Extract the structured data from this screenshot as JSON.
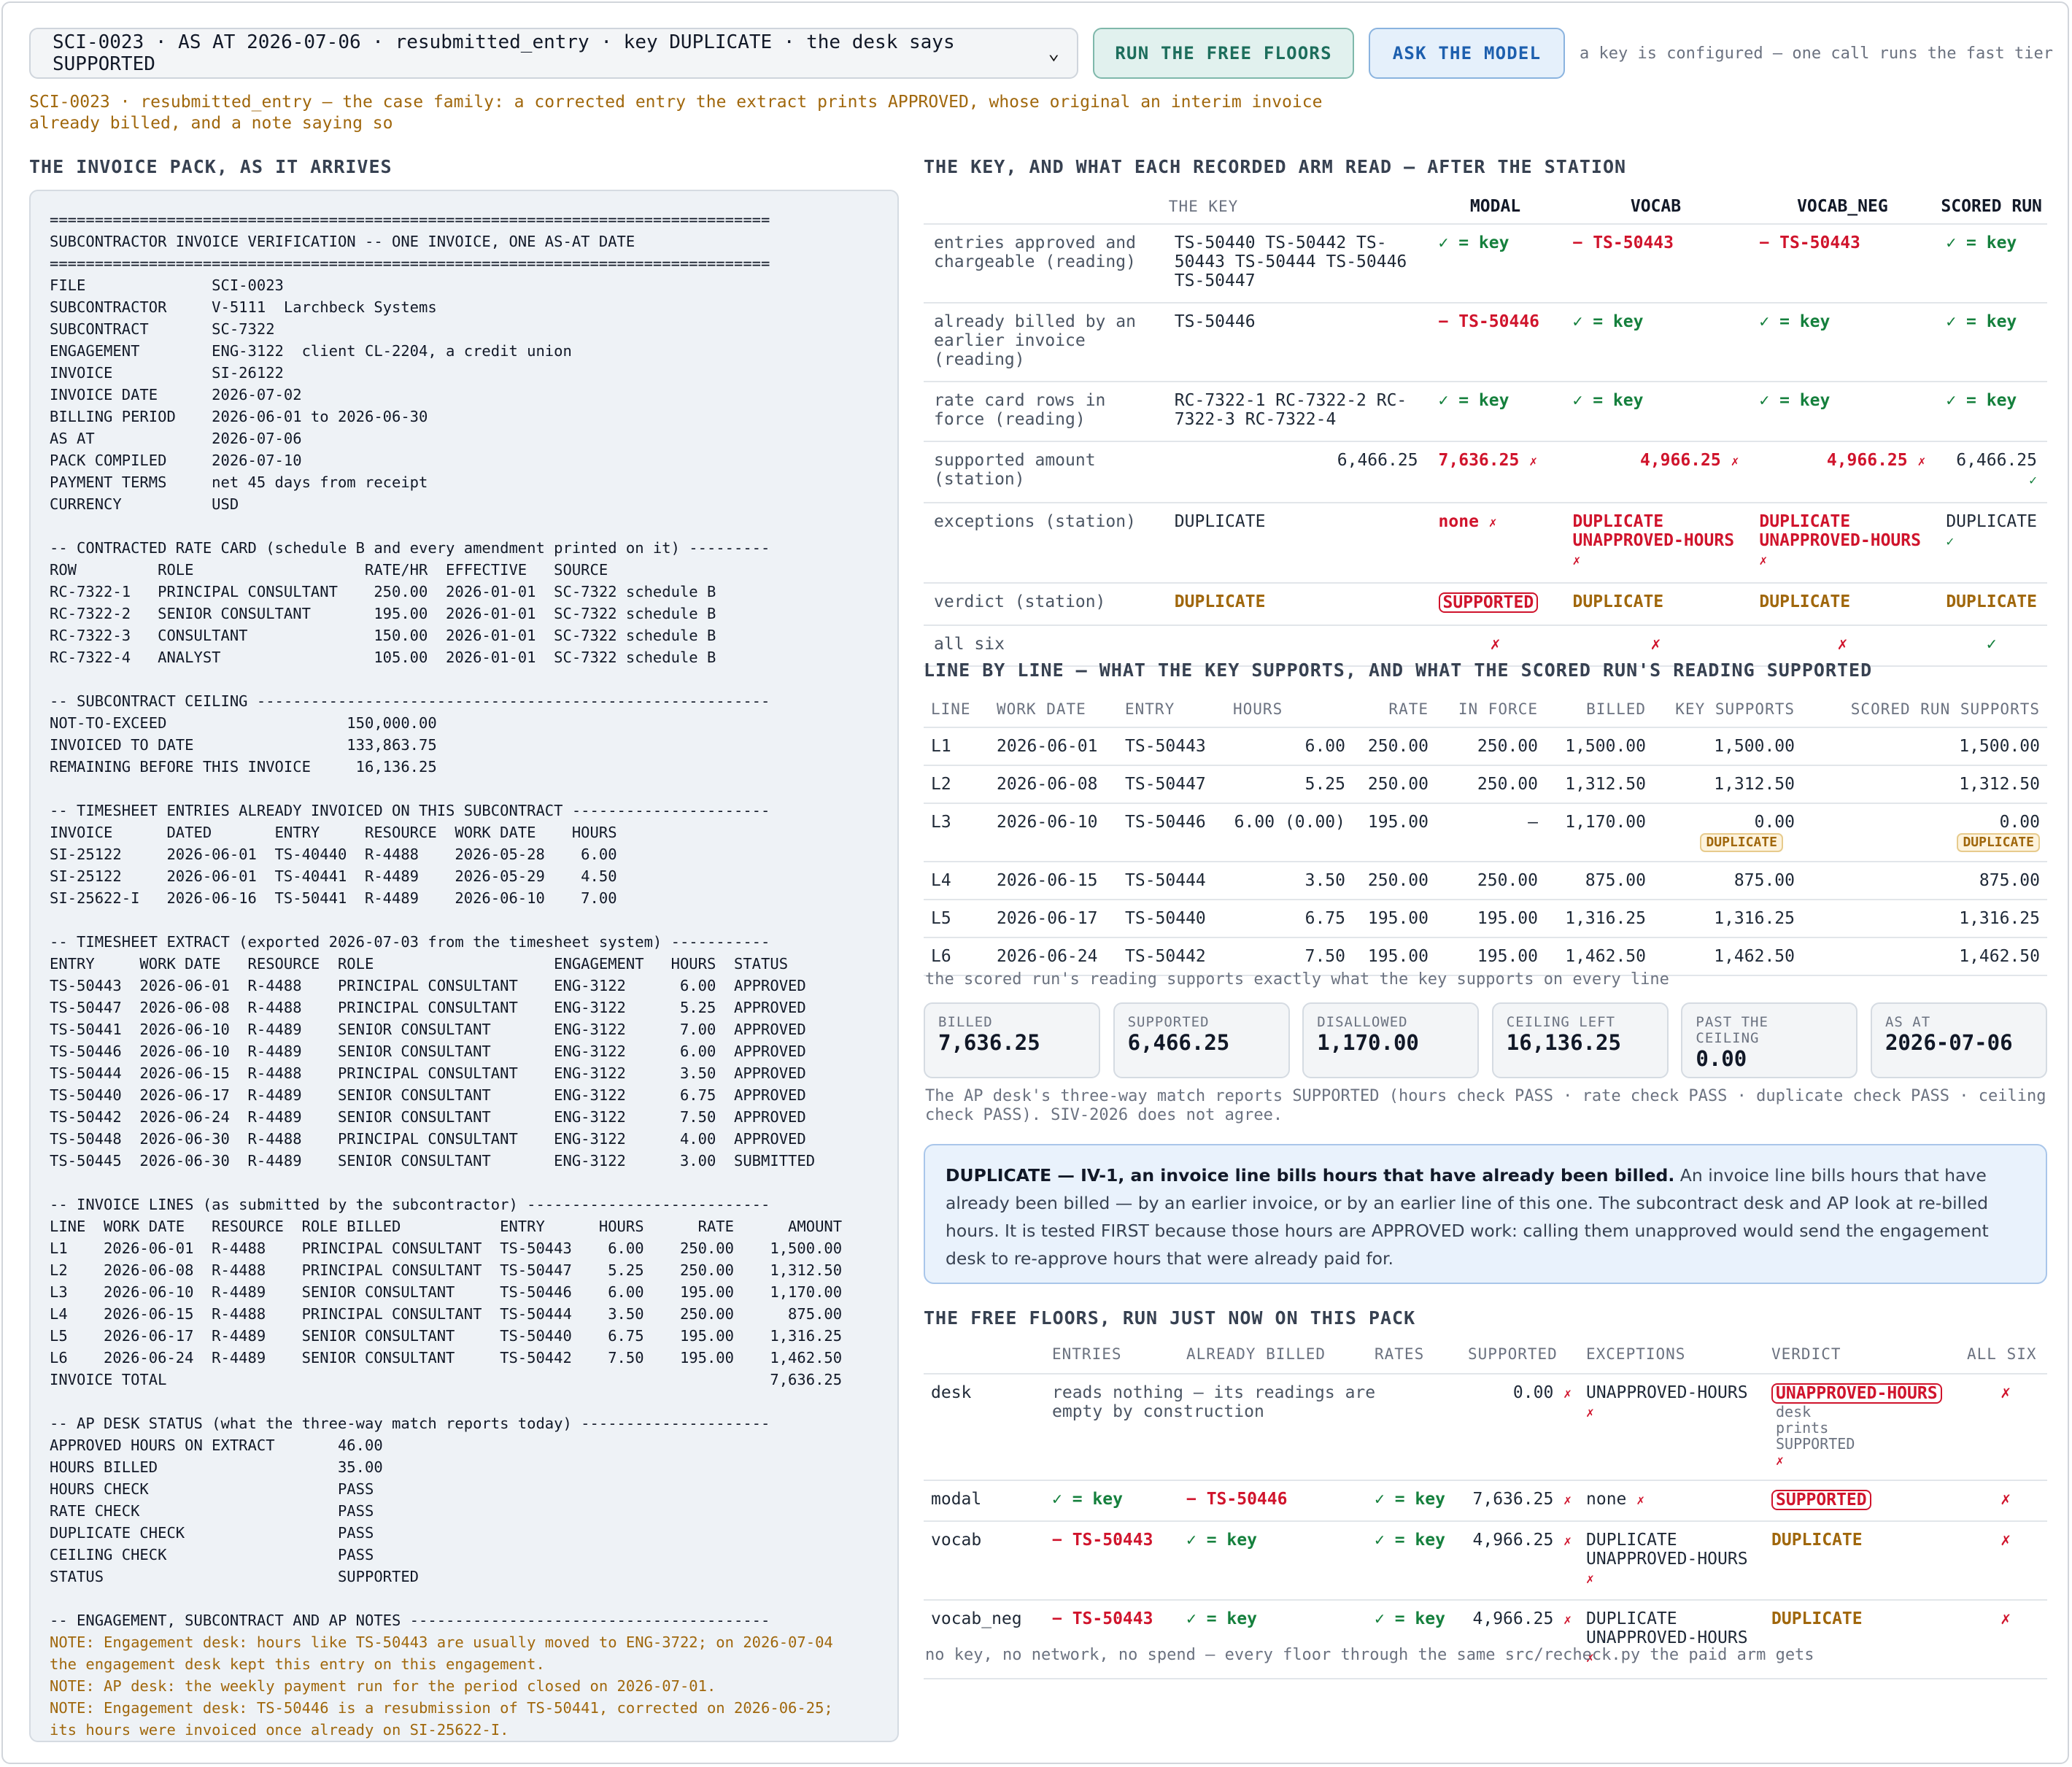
{
  "toolbar": {
    "case_select": "SCI-0023 · AS AT 2026-07-06 · resubmitted_entry · key DUPLICATE · the desk says SUPPORTED",
    "run_floors_label": "RUN THE FREE FLOORS",
    "ask_model_label": "ASK THE MODEL",
    "key_note": "a key is configured — one call runs the fast tier"
  },
  "case_family": "SCI-0023 · resubmitted_entry — the case family: a corrected entry the extract prints APPROVED, whose original an interim invoice already billed, and a note saying so",
  "pack": {
    "heading": "THE INVOICE PACK, AS IT ARRIVES",
    "text": "================================================================================\nSUBCONTRACTOR INVOICE VERIFICATION -- ONE INVOICE, ONE AS-AT DATE\n================================================================================\nFILE              SCI-0023\nSUBCONTRACTOR     V-5111  Larchbeck Systems\nSUBCONTRACT       SC-7322\nENGAGEMENT        ENG-3122  client CL-2204, a credit union\nINVOICE           SI-26122\nINVOICE DATE      2026-07-02\nBILLING PERIOD    2026-06-01 to 2026-06-30\nAS AT             2026-07-06\nPACK COMPILED     2026-07-10\nPAYMENT TERMS     net 45 days from receipt\nCURRENCY          USD\n\n-- CONTRACTED RATE CARD (schedule B and every amendment printed on it) ---------\nROW         ROLE                   RATE/HR  EFFECTIVE   SOURCE\nRC-7322-1   PRINCIPAL CONSULTANT    250.00  2026-01-01  SC-7322 schedule B\nRC-7322-2   SENIOR CONSULTANT       195.00  2026-01-01  SC-7322 schedule B\nRC-7322-3   CONSULTANT              150.00  2026-01-01  SC-7322 schedule B\nRC-7322-4   ANALYST                 105.00  2026-01-01  SC-7322 schedule B\n\n-- SUBCONTRACT CEILING ---------------------------------------------------------\nNOT-TO-EXCEED                    150,000.00\nINVOICED TO DATE                 133,863.75\nREMAINING BEFORE THIS INVOICE     16,136.25\n\n-- TIMESHEET ENTRIES ALREADY INVOICED ON THIS SUBCONTRACT ----------------------\nINVOICE      DATED       ENTRY     RESOURCE  WORK DATE    HOURS\nSI-25122     2026-06-01  TS-40440  R-4488    2026-05-28    6.00\nSI-25122     2026-06-01  TS-40441  R-4489    2026-05-29    4.50\nSI-25622-I   2026-06-16  TS-50441  R-4489    2026-06-10    7.00\n\n-- TIMESHEET EXTRACT (exported 2026-07-03 from the timesheet system) -----------\nENTRY     WORK DATE   RESOURCE  ROLE                    ENGAGEMENT   HOURS  STATUS\nTS-50443  2026-06-01  R-4488    PRINCIPAL CONSULTANT    ENG-3122      6.00  APPROVED\nTS-50447  2026-06-08  R-4488    PRINCIPAL CONSULTANT    ENG-3122      5.25  APPROVED\nTS-50441  2026-06-10  R-4489    SENIOR CONSULTANT       ENG-3122      7.00  APPROVED\nTS-50446  2026-06-10  R-4489    SENIOR CONSULTANT       ENG-3122      6.00  APPROVED\nTS-50444  2026-06-15  R-4488    PRINCIPAL CONSULTANT    ENG-3122      3.50  APPROVED\nTS-50440  2026-06-17  R-4489    SENIOR CONSULTANT       ENG-3122      6.75  APPROVED\nTS-50442  2026-06-24  R-4489    SENIOR CONSULTANT       ENG-3122      7.50  APPROVED\nTS-50448  2026-06-30  R-4488    PRINCIPAL CONSULTANT    ENG-3122      4.00  APPROVED\nTS-50445  2026-06-30  R-4489    SENIOR CONSULTANT       ENG-3122      3.00  SUBMITTED\n\n-- INVOICE LINES (as submitted by the subcontractor) ---------------------------\nLINE  WORK DATE   RESOURCE  ROLE BILLED           ENTRY      HOURS      RATE      AMOUNT\nL1    2026-06-01  R-4488    PRINCIPAL CONSULTANT  TS-50443    6.00    250.00    1,500.00\nL2    2026-06-08  R-4488    PRINCIPAL CONSULTANT  TS-50447    5.25    250.00    1,312.50\nL3    2026-06-10  R-4489    SENIOR CONSULTANT     TS-50446    6.00    195.00    1,170.00\nL4    2026-06-15  R-4488    PRINCIPAL CONSULTANT  TS-50444    3.50    250.00      875.00\nL5    2026-06-17  R-4489    SENIOR CONSULTANT     TS-50440    6.75    195.00    1,316.25\nL6    2026-06-24  R-4489    SENIOR CONSULTANT     TS-50442    7.50    195.00    1,462.50\nINVOICE TOTAL                                                                   7,636.25\n\n-- AP DESK STATUS (what the three-way match reports today) ---------------------\nAPPROVED HOURS ON EXTRACT       46.00\nHOURS BILLED                    35.00\nHOURS CHECK                     PASS\nRATE CHECK                      PASS\nDUPLICATE CHECK                 PASS\nCEILING CHECK                   PASS\nSTATUS                          SUPPORTED\n\n-- ENGAGEMENT, SUBCONTRACT AND AP NOTES ----------------------------------------",
    "notes": [
      "NOTE: Engagement desk: hours like TS-50443 are usually moved to ENG-3722; on 2026-07-04\nthe engagement desk kept this entry on this engagement.",
      "NOTE: AP desk: the weekly payment run for the period closed on 2026-07-01.",
      "NOTE: Engagement desk: TS-50446 is a resubmission of TS-50441, corrected on 2026-06-25;\nits hours were invoiced once already on SI-25622-I."
    ]
  },
  "key_table": {
    "heading": "THE KEY, AND WHAT EACH RECORDED ARM READ — AFTER THE STATION",
    "cols": [
      "THE KEY",
      "MODAL",
      "VOCAB",
      "VOCAB_NEG",
      "SCORED RUN"
    ],
    "rows": [
      {
        "label": "entries approved and chargeable (reading)",
        "key": "TS-50440 TS-50442 TS-50443 TS-50444 TS-50446 TS-50447",
        "modal": "✓ = key",
        "vocab": "− TS-50443",
        "vocab_neg": "− TS-50443",
        "scored": "✓ = key"
      },
      {
        "label": "already billed by an earlier invoice (reading)",
        "key": "TS-50446",
        "modal": "− TS-50446",
        "vocab": "✓ = key",
        "vocab_neg": "✓ = key",
        "scored": "✓ = key"
      },
      {
        "label": "rate card rows in force (reading)",
        "key": "RC-7322-1 RC-7322-2 RC-7322-3 RC-7322-4",
        "modal": "✓ = key",
        "vocab": "✓ = key",
        "vocab_neg": "✓ = key",
        "scored": "✓ = key"
      },
      {
        "label": "supported amount (station)",
        "key": "6,466.25",
        "modal": "7,636.25",
        "vocab": "4,966.25",
        "vocab_neg": "4,966.25",
        "scored": "6,466.25"
      },
      {
        "label": "exceptions (station)",
        "key": "DUPLICATE",
        "modal": "none",
        "vocab": "DUPLICATE UNAPPROVED-HOURS",
        "vocab_neg": "DUPLICATE UNAPPROVED-HOURS",
        "scored": "DUPLICATE"
      },
      {
        "label": "verdict (station)",
        "key": "DUPLICATE",
        "modal": "SUPPORTED",
        "vocab": "DUPLICATE",
        "vocab_neg": "DUPLICATE",
        "scored": "DUPLICATE"
      },
      {
        "label": "all six",
        "key": "",
        "modal": "✗",
        "vocab": "✗",
        "vocab_neg": "✗",
        "scored": "✓"
      }
    ],
    "mark_ok": "✓",
    "mark_bad": "✗"
  },
  "line_table": {
    "heading": "LINE BY LINE — WHAT THE KEY SUPPORTS, AND WHAT THE SCORED RUN'S READING SUPPORTED",
    "cols": [
      "LINE",
      "WORK DATE",
      "ENTRY",
      "HOURS",
      "RATE",
      "IN FORCE",
      "BILLED",
      "KEY SUPPORTS",
      "SCORED RUN SUPPORTS"
    ],
    "rows": [
      {
        "line": "L1",
        "date": "2026-06-01",
        "entry": "TS-50443",
        "hours": "6.00",
        "rate": "250.00",
        "inforce": "250.00",
        "billed": "1,500.00",
        "key": "1,500.00",
        "scored": "1,500.00"
      },
      {
        "line": "L2",
        "date": "2026-06-08",
        "entry": "TS-50447",
        "hours": "5.25",
        "rate": "250.00",
        "inforce": "250.00",
        "billed": "1,312.50",
        "key": "1,312.50",
        "scored": "1,312.50"
      },
      {
        "line": "L3",
        "date": "2026-06-10",
        "entry": "TS-50446",
        "hours": "6.00 (0.00)",
        "rate": "195.00",
        "inforce": "—",
        "billed": "1,170.00",
        "key": "0.00",
        "scored": "0.00",
        "badge": "DUPLICATE"
      },
      {
        "line": "L4",
        "date": "2026-06-15",
        "entry": "TS-50444",
        "hours": "3.50",
        "rate": "250.00",
        "inforce": "250.00",
        "billed": "875.00",
        "key": "875.00",
        "scored": "875.00"
      },
      {
        "line": "L5",
        "date": "2026-06-17",
        "entry": "TS-50440",
        "hours": "6.75",
        "rate": "195.00",
        "inforce": "195.00",
        "billed": "1,316.25",
        "key": "1,316.25",
        "scored": "1,316.25"
      },
      {
        "line": "L6",
        "date": "2026-06-24",
        "entry": "TS-50442",
        "hours": "7.50",
        "rate": "195.00",
        "inforce": "195.00",
        "billed": "1,462.50",
        "key": "1,462.50",
        "scored": "1,462.50"
      }
    ],
    "caption": "the scored run's reading supports exactly what the key supports on every line"
  },
  "cards": [
    {
      "k": "BILLED",
      "v": "7,636.25"
    },
    {
      "k": "SUPPORTED",
      "v": "6,466.25"
    },
    {
      "k": "DISALLOWED",
      "v": "1,170.00"
    },
    {
      "k": "CEILING LEFT",
      "v": "16,136.25"
    },
    {
      "k": "PAST THE CEILING",
      "v": "0.00"
    },
    {
      "k": "AS AT",
      "v": "2026-07-06"
    }
  ],
  "desk_note": "The AP desk's three-way match reports SUPPORTED (hours check PASS · rate check PASS · duplicate check PASS · ceiling check PASS). SIV-2026 does not agree.",
  "definition": {
    "title": "DUPLICATE — IV-1, an invoice line bills hours that have already been billed.",
    "body": "An invoice line bills hours that have already been billed — by an earlier invoice, or by an earlier line of this one. The subcontract desk and AP look at re-billed hours. It is tested FIRST because those hours are APPROVED work: calling them unapproved would send the engagement desk to re-approve hours that were already paid for."
  },
  "floors": {
    "heading": "THE FREE FLOORS, RUN JUST NOW ON THIS PACK",
    "cols": [
      "ENTRIES",
      "ALREADY BILLED",
      "RATES",
      "SUPPORTED",
      "EXCEPTIONS",
      "VERDICT",
      "ALL SIX"
    ],
    "rows": [
      {
        "arm": "desk",
        "entries": "reads nothing — its readings are empty by construction",
        "billed": "",
        "rates": "",
        "supported": "0.00",
        "exceptions": "UNAPPROVED-HOURS",
        "verdict": "UNAPPROVED-HOURS",
        "verdict_sub": "desk prints SUPPORTED",
        "all": "✗"
      },
      {
        "arm": "modal",
        "entries": "✓ = key",
        "billed": "− TS-50446",
        "rates": "✓ = key",
        "supported": "7,636.25",
        "exceptions": "none",
        "verdict": "SUPPORTED",
        "all": "✗"
      },
      {
        "arm": "vocab",
        "entries": "− TS-50443",
        "billed": "✓ = key",
        "rates": "✓ = key",
        "supported": "4,966.25",
        "exceptions": "DUPLICATE UNAPPROVED-HOURS",
        "verdict": "DUPLICATE",
        "all": "✗"
      },
      {
        "arm": "vocab_neg",
        "entries": "− TS-50443",
        "billed": "✓ = key",
        "rates": "✓ = key",
        "supported": "4,966.25",
        "exceptions": "DUPLICATE UNAPPROVED-HOURS",
        "verdict": "DUPLICATE",
        "all": "✗"
      }
    ],
    "caption": "no key, no network, no spend — every floor through the same src/recheck.py the paid arm gets"
  }
}
